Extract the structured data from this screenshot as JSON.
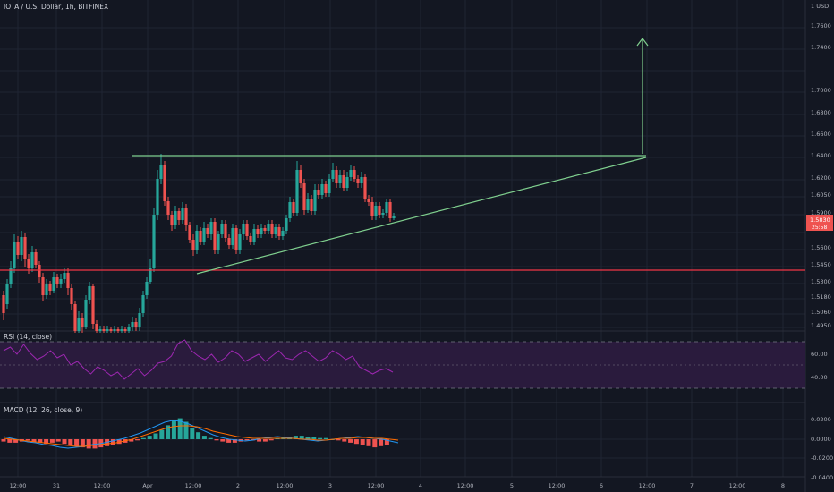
{
  "header": {
    "symbol_title": "IOTA / U.S. Dollar, 1h, BITFINEX",
    "currency": "1 USD"
  },
  "price_axis": {
    "ticks": [
      "1.7600",
      "1.7400",
      "1.7000",
      "1.6800",
      "1.6600",
      "1.6400",
      "1.6200",
      "1.6050",
      "1.5900",
      "1.5700",
      "1.5600",
      "1.5450",
      "1.5300",
      "1.5180",
      "1.5060",
      "1.4950"
    ],
    "current_price_label": "1.5830",
    "countdown_label": "25:58"
  },
  "rsi_pane": {
    "title": "RSI (14, close)",
    "ticks": [
      "60.00",
      "40.00"
    ]
  },
  "macd_pane": {
    "title": "MACD (12, 26, close, 9)",
    "ticks": [
      "0.0200",
      "0.0000",
      "-0.0200",
      "-0.0400"
    ]
  },
  "time_axis": {
    "labels": [
      "12:00",
      "31",
      "12:00",
      "Apr",
      "12:00",
      "2",
      "12:00",
      "3",
      "12:00",
      "4",
      "12:00",
      "5",
      "12:00",
      "6",
      "12:00",
      "7",
      "12:00",
      "8"
    ]
  },
  "colors": {
    "background": "#131722",
    "grid": "#1f2433",
    "up": "#26a69a",
    "down": "#ef5350",
    "rsi_line": "#9c27b0",
    "rsi_band": "#2a1b3d",
    "support_line": "#f23645",
    "drawing": "#7fcf8e",
    "macd_line": "#2196f3",
    "signal_line": "#ff6d00",
    "axis_text": "#b2b5be"
  }
}
